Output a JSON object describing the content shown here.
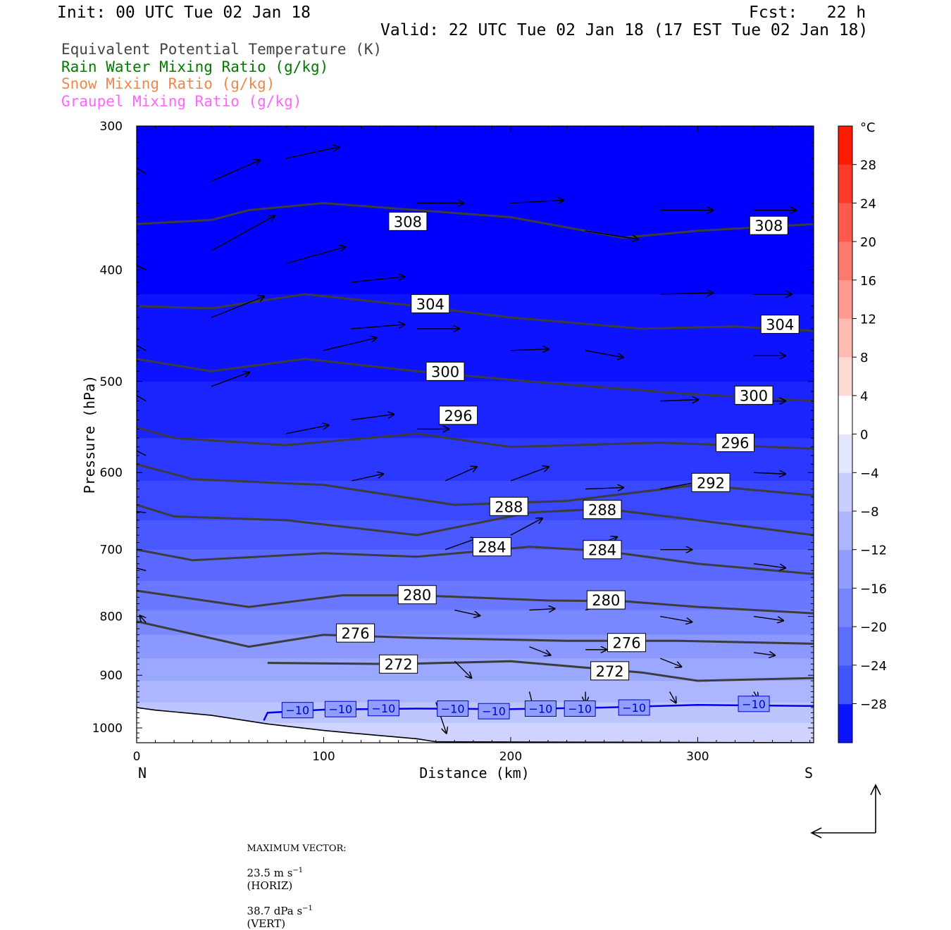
{
  "header": {
    "init": "Init: 00 UTC Tue 02 Jan 18",
    "fcst": "Fcst:   22 h",
    "valid": "Valid: 22 UTC Tue 02 Jan 18 (17 EST Tue 02 Jan 18)"
  },
  "legend": [
    {
      "text": "Equivalent Potential Temperature (K)",
      "color": "#444444"
    },
    {
      "text": "Rain Water Mixing Ratio (g/kg)",
      "color": "#007a00"
    },
    {
      "text": "Snow Mixing Ratio (g/kg)",
      "color": "#f0874a"
    },
    {
      "text": "Graupel Mixing Ratio (g/kg)",
      "color": "#ff66ff"
    }
  ],
  "colorbar": {
    "unit": "°C",
    "labels": [
      "28",
      "24",
      "20",
      "16",
      "12",
      "8",
      "4",
      "0",
      "−4",
      "−8",
      "−12",
      "−16",
      "−20",
      "−24",
      "−28"
    ]
  },
  "footer": {
    "max_vector_label": "MAXIMUM VECTOR:",
    "horiz": "23.5 m s",
    "horiz_unit": "(HORIZ)",
    "vert": "38.7 dPa s",
    "vert_unit": "(VERT)",
    "exponent": "−1"
  },
  "chart_data": {
    "type": "heatmap",
    "xlabel": "Distance (km)",
    "ylabel": "Pressure (hPa)",
    "xlim": [
      0,
      362
    ],
    "ylim": [
      1030,
      300
    ],
    "y_scale": "log",
    "x_ticks": [
      0,
      100,
      200,
      300
    ],
    "y_ticks": [
      300,
      400,
      500,
      600,
      700,
      800,
      900,
      1000
    ],
    "x_end_labels": {
      "left": "N",
      "right": "S"
    },
    "fill_variable": "temperature (°C)",
    "fill_levels": [
      -30,
      -28,
      -26,
      -24,
      -22,
      -20,
      -18,
      -16,
      -14,
      -12,
      -10,
      -8,
      -6,
      -4
    ],
    "fill_colors": [
      "#0000ff",
      "#0d12ff",
      "#1a24ff",
      "#2b38ff",
      "#3a48ff",
      "#4a58ff",
      "#5a68ff",
      "#6a78ff",
      "#7a88ff",
      "#8a98ff",
      "#9ba8ff",
      "#acb6ff",
      "#bdc5ff",
      "#ced4ff"
    ],
    "theta_e_contours": [
      {
        "level": 308,
        "points": [
          [
            0,
            365
          ],
          [
            40,
            362
          ],
          [
            60,
            355
          ],
          [
            100,
            350
          ],
          [
            150,
            355
          ],
          [
            200,
            360
          ],
          [
            260,
            375
          ],
          [
            300,
            370
          ],
          [
            362,
            365
          ]
        ],
        "labels": [
          [
            145,
            363
          ],
          [
            338,
            366
          ]
        ]
      },
      {
        "level": 304,
        "points": [
          [
            0,
            430
          ],
          [
            40,
            432
          ],
          [
            90,
            420
          ],
          [
            150,
            430
          ],
          [
            200,
            440
          ],
          [
            270,
            450
          ],
          [
            320,
            448
          ],
          [
            362,
            452
          ]
        ],
        "labels": [
          [
            157,
            428
          ],
          [
            344,
            446
          ]
        ]
      },
      {
        "level": 300,
        "points": [
          [
            0,
            478
          ],
          [
            40,
            490
          ],
          [
            90,
            478
          ],
          [
            150,
            490
          ],
          [
            210,
            500
          ],
          [
            290,
            512
          ],
          [
            362,
            520
          ]
        ],
        "labels": [
          [
            165,
            490
          ],
          [
            330,
            514
          ]
        ]
      },
      {
        "level": 296,
        "points": [
          [
            0,
            548
          ],
          [
            20,
            560
          ],
          [
            80,
            568
          ],
          [
            150,
            555
          ],
          [
            200,
            570
          ],
          [
            280,
            565
          ],
          [
            362,
            572
          ]
        ],
        "labels": [
          [
            172,
            535
          ],
          [
            320,
            565
          ]
        ]
      },
      {
        "level": 292,
        "points": [
          [
            0,
            590
          ],
          [
            30,
            608
          ],
          [
            100,
            615
          ],
          [
            170,
            640
          ],
          [
            230,
            635
          ],
          [
            300,
            615
          ],
          [
            362,
            628
          ]
        ],
        "labels": [
          [
            307,
            612
          ]
        ]
      },
      {
        "level": 288,
        "points": [
          [
            0,
            640
          ],
          [
            20,
            655
          ],
          [
            80,
            660
          ],
          [
            150,
            680
          ],
          [
            210,
            650
          ],
          [
            250,
            645
          ],
          [
            300,
            660
          ],
          [
            362,
            680
          ]
        ],
        "labels": [
          [
            199,
            642
          ],
          [
            249,
            646
          ]
        ]
      },
      {
        "level": 284,
        "points": [
          [
            0,
            700
          ],
          [
            30,
            715
          ],
          [
            100,
            705
          ],
          [
            150,
            710
          ],
          [
            210,
            696
          ],
          [
            250,
            702
          ],
          [
            300,
            720
          ],
          [
            362,
            735
          ]
        ],
        "labels": [
          [
            190,
            696
          ],
          [
            249,
            700
          ]
        ]
      },
      {
        "level": 280,
        "points": [
          [
            0,
            760
          ],
          [
            60,
            785
          ],
          [
            110,
            767
          ],
          [
            150,
            767
          ],
          [
            220,
            775
          ],
          [
            260,
            776
          ],
          [
            300,
            785
          ],
          [
            362,
            795
          ]
        ],
        "labels": [
          [
            150,
            766
          ],
          [
            251,
            774
          ]
        ]
      },
      {
        "level": 276,
        "points": [
          [
            0,
            808
          ],
          [
            60,
            850
          ],
          [
            100,
            830
          ],
          [
            150,
            835
          ],
          [
            230,
            840
          ],
          [
            290,
            840
          ],
          [
            362,
            845
          ]
        ],
        "labels": [
          [
            117,
            827
          ],
          [
            262,
            843
          ]
        ]
      },
      {
        "level": 272,
        "points": [
          [
            70,
            878
          ],
          [
            140,
            880
          ],
          [
            200,
            875
          ],
          [
            270,
            895
          ],
          [
            300,
            910
          ],
          [
            362,
            905
          ]
        ],
        "labels": [
          [
            140,
            880
          ],
          [
            253,
            892
          ]
        ]
      }
    ],
    "isotherms": [
      {
        "level": -10,
        "color": "#0000ee",
        "labels": [
          [
            86,
            965
          ],
          [
            109,
            963
          ],
          [
            132,
            961
          ],
          [
            169,
            962
          ],
          [
            191,
            967
          ],
          [
            216,
            962
          ],
          [
            237,
            962
          ],
          [
            266,
            960
          ],
          [
            330,
            953
          ]
        ]
      }
    ],
    "terrain": [
      [
        0,
        960
      ],
      [
        10,
        965
      ],
      [
        40,
        975
      ],
      [
        70,
        992
      ],
      [
        100,
        1005
      ],
      [
        120,
        1012
      ],
      [
        150,
        1022
      ],
      [
        160,
        1028
      ],
      [
        362,
        1030
      ]
    ],
    "wind_vectors_note": "horizontal-vertical circulation vectors; max 23.5 m s−1 horiz, 38.7 dPa s−1 vert",
    "wind_vectors": [
      [
        40,
        335,
        23,
        -15
      ],
      [
        40,
        385,
        30,
        -25
      ],
      [
        40,
        440,
        25,
        -15
      ],
      [
        40,
        505,
        18,
        -10
      ],
      [
        80,
        320,
        25,
        -8
      ],
      [
        80,
        395,
        28,
        -12
      ],
      [
        100,
        470,
        25,
        -9
      ],
      [
        80,
        555,
        20,
        -6
      ],
      [
        5,
        330,
        -25,
        -22
      ],
      [
        5,
        400,
        -28,
        -20
      ],
      [
        5,
        470,
        -25,
        -20
      ],
      [
        5,
        520,
        -20,
        -18
      ],
      [
        5,
        580,
        -18,
        -14
      ],
      [
        5,
        650,
        -18,
        -3
      ],
      [
        5,
        730,
        -10,
        -4
      ],
      [
        5,
        810,
        -3,
        -5
      ],
      [
        115,
        410,
        25,
        -4
      ],
      [
        115,
        450,
        25,
        -3
      ],
      [
        115,
        540,
        20,
        -4
      ],
      [
        115,
        610,
        15,
        -5
      ],
      [
        150,
        350,
        22,
        0
      ],
      [
        150,
        450,
        20,
        0
      ],
      [
        150,
        550,
        15,
        0
      ],
      [
        165,
        610,
        15,
        -10
      ],
      [
        165,
        700,
        15,
        -8
      ],
      [
        170,
        790,
        12,
        4
      ],
      [
        170,
        875,
        8,
        12
      ],
      [
        160,
        950,
        5,
        22
      ],
      [
        200,
        350,
        25,
        -2
      ],
      [
        200,
        470,
        18,
        -1
      ],
      [
        200,
        610,
        18,
        -10
      ],
      [
        200,
        680,
        15,
        -12
      ],
      [
        210,
        790,
        12,
        -1
      ],
      [
        210,
        850,
        10,
        6
      ],
      [
        210,
        930,
        2,
        12
      ],
      [
        240,
        370,
        25,
        6
      ],
      [
        240,
        470,
        18,
        5
      ],
      [
        240,
        620,
        18,
        -1
      ],
      [
        240,
        700,
        15,
        -9
      ],
      [
        240,
        790,
        12,
        -5
      ],
      [
        240,
        855,
        10,
        0
      ],
      [
        240,
        930,
        0,
        8
      ],
      [
        280,
        355,
        25,
        0
      ],
      [
        280,
        420,
        25,
        -1
      ],
      [
        280,
        520,
        18,
        -1
      ],
      [
        280,
        620,
        18,
        -5
      ],
      [
        280,
        700,
        15,
        0
      ],
      [
        280,
        800,
        15,
        4
      ],
      [
        280,
        870,
        10,
        6
      ],
      [
        285,
        930,
        3,
        8
      ],
      [
        330,
        355,
        20,
        0
      ],
      [
        330,
        420,
        18,
        0
      ],
      [
        330,
        475,
        15,
        0
      ],
      [
        330,
        520,
        15,
        0
      ],
      [
        330,
        600,
        15,
        1
      ],
      [
        330,
        720,
        15,
        3
      ],
      [
        330,
        800,
        14,
        3
      ],
      [
        330,
        860,
        10,
        2
      ],
      [
        330,
        930,
        2,
        5
      ]
    ]
  }
}
